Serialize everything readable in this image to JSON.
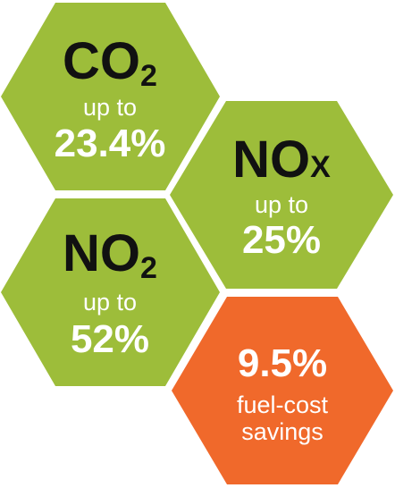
{
  "hexagons": [
    {
      "formula": "CO",
      "subscript": "2",
      "qualifier": "up to",
      "value": "23.4%"
    },
    {
      "formula": "NO",
      "suffix": "X",
      "qualifier": "up to",
      "value": "25%"
    },
    {
      "formula": "NO",
      "subscript": "2",
      "qualifier": "up to",
      "value": "52%"
    },
    {
      "value": "9.5%",
      "caption": [
        "fuel-cost",
        "savings"
      ]
    }
  ]
}
